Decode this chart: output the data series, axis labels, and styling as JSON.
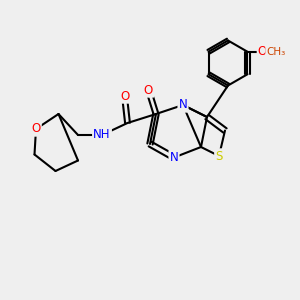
{
  "bg_color": "#efefef",
  "bond_color": "#000000",
  "bond_lw": 1.5,
  "font_size": 9,
  "atom_colors": {
    "N": "#0000ff",
    "O": "#ff0000",
    "S": "#cccc00",
    "C": "#000000",
    "H": "#000000"
  }
}
